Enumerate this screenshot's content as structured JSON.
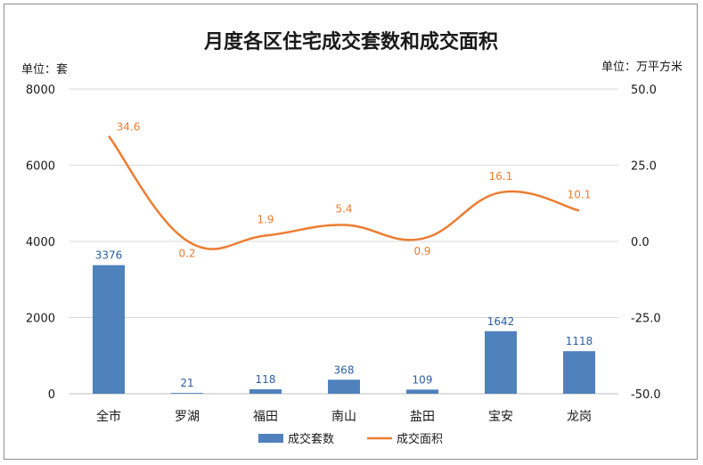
{
  "colors": {
    "bar": "#4f81bd",
    "line": "#ed7d31",
    "grid": "#d9d9d9",
    "axis": "#bfbfbf"
  },
  "chart_data": {
    "type": "bar",
    "title": "月度各区住宅成交套数和成交面积",
    "left_unit": "单位：套",
    "right_unit": "单位：万平方米",
    "categories": [
      "全市",
      "罗湖",
      "福田",
      "南山",
      "盐田",
      "宝安",
      "龙岗"
    ],
    "y_left": {
      "range": [
        0,
        8000
      ],
      "ticks": [
        "0",
        "2000",
        "4000",
        "6000",
        "8000"
      ],
      "tick_values": [
        0,
        2000,
        4000,
        6000,
        8000
      ]
    },
    "y_right": {
      "range": [
        -50,
        50
      ],
      "ticks": [
        "-50.0",
        "-25.0",
        "0.0",
        "25.0",
        "50.0"
      ],
      "tick_values": [
        -50,
        -25,
        0,
        25,
        50
      ]
    },
    "series": [
      {
        "name": "成交套数",
        "type": "bar",
        "axis": "left",
        "values": [
          3376,
          21,
          118,
          368,
          109,
          1642,
          1118
        ],
        "labels": [
          "3376",
          "21",
          "118",
          "368",
          "109",
          "1642",
          "1118"
        ]
      },
      {
        "name": "成交面积",
        "type": "line",
        "axis": "right",
        "values": [
          34.6,
          0.2,
          1.9,
          5.4,
          0.9,
          16.1,
          10.1
        ],
        "labels": [
          "34.6",
          "0.2",
          "1.9",
          "5.4",
          "0.9",
          "16.1",
          "10.1"
        ]
      }
    ],
    "legend_position": "bottom",
    "grid": true
  }
}
